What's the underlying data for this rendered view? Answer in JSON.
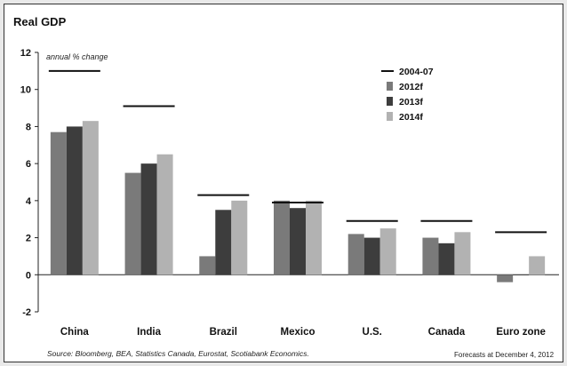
{
  "chart_data": {
    "type": "bar",
    "title": "Real GDP",
    "unit_label": "annual % change",
    "categories": [
      "China",
      "India",
      "Brazil",
      "Mexico",
      "U.S.",
      "Canada",
      "Euro zone"
    ],
    "series": [
      {
        "name": "2012f",
        "values": [
          7.7,
          5.5,
          1.0,
          4.0,
          2.2,
          2.0,
          -0.4
        ]
      },
      {
        "name": "2013f",
        "values": [
          8.0,
          6.0,
          3.5,
          3.6,
          2.0,
          1.7,
          0.0
        ]
      },
      {
        "name": "2014f",
        "values": [
          8.3,
          6.5,
          4.0,
          4.0,
          2.5,
          2.3,
          1.0
        ]
      }
    ],
    "reference": {
      "name": "2004-07",
      "values": [
        11.0,
        9.1,
        4.3,
        3.9,
        2.9,
        2.9,
        2.3
      ]
    },
    "ylim": [
      -2,
      12
    ],
    "yticks": [
      -2,
      0,
      2,
      4,
      6,
      8,
      10,
      12
    ],
    "grid": false,
    "legend_position": "top-right",
    "colors": {
      "2012f": "#7a7a7a",
      "2013f": "#3d3d3d",
      "2014f": "#b2b2b2",
      "2004-07": "#111111"
    }
  },
  "footer": {
    "source": "Source: Bloomberg, BEA, Statistics Canada, Eurostat, Scotiabank Economics.",
    "forecast_note": "Forecasts at December 4, 2012"
  }
}
